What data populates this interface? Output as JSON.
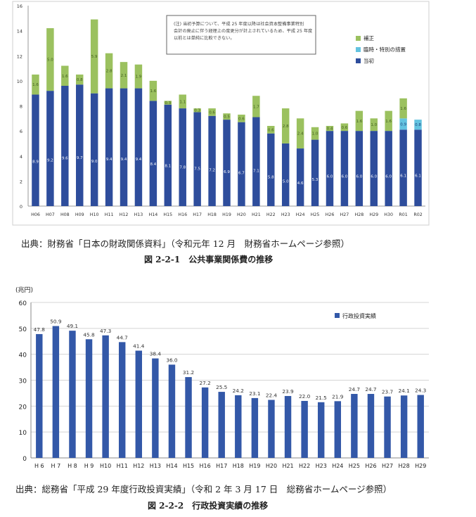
{
  "chart_data": [
    {
      "type": "bar",
      "stacked": true,
      "categories": [
        "H06",
        "H07",
        "H08",
        "H09",
        "H10",
        "H11",
        "H12",
        "H13",
        "H14",
        "H15",
        "H16",
        "H17",
        "H18",
        "H19",
        "H20",
        "H21",
        "H22",
        "H23",
        "H24",
        "H25",
        "H26",
        "H27",
        "H28",
        "H29",
        "H30",
        "R01",
        "R02"
      ],
      "ylim": [
        0,
        16
      ],
      "yticks": [
        0,
        2,
        4,
        6,
        8,
        10,
        12,
        14,
        16
      ],
      "grid": false,
      "legend_position": "right",
      "note": "(注) 当初予算について、平成 25 年度以降は社会資本整備事業特別会計の廃止に伴う経理上の度更分が計上されているため、平成 25 年度以前とは単純に比較できない。",
      "series": [
        {
          "name": "当初",
          "color": "#2e4d9c",
          "values": [
            8.9,
            9.2,
            9.6,
            9.7,
            9.0,
            9.4,
            9.4,
            9.4,
            8.4,
            8.1,
            7.8,
            7.5,
            7.2,
            6.9,
            6.7,
            7.1,
            5.8,
            5.0,
            4.6,
            5.3,
            6.0,
            6.0,
            6.0,
            6.0,
            6.0,
            6.1,
            6.1
          ]
        },
        {
          "name": "臨時・特別の措置",
          "color": "#63c3e0",
          "values": [
            0,
            0,
            0,
            0,
            0,
            0,
            0,
            0,
            0,
            0,
            0,
            0,
            0,
            0,
            0,
            0,
            0,
            0,
            0,
            0,
            0,
            0,
            0,
            0,
            0,
            0.9,
            0.8
          ]
        },
        {
          "name": "補正",
          "color": "#9bc15f",
          "values": [
            1.6,
            5.0,
            1.6,
            0.8,
            5.9,
            2.8,
            2.1,
            1.9,
            1.6,
            0.3,
            1.1,
            0.3,
            0.6,
            0.5,
            0.6,
            1.7,
            0.6,
            2.8,
            2.4,
            1.0,
            0.4,
            0.6,
            1.6,
            1.0,
            1.6,
            1.6,
            0
          ]
        }
      ],
      "source": "出典：財務省「日本の財政関係資料」（令和元年 12 月　財務省ホームページ参照）",
      "figure_title": "図 2-2-1　公共事業関係費の推移"
    },
    {
      "type": "bar",
      "categories": [
        "H 6",
        "H 7",
        "H 8",
        "H 9",
        "H10",
        "H11",
        "H12",
        "H13",
        "H14",
        "H15",
        "H16",
        "H17",
        "H18",
        "H19",
        "H20",
        "H21",
        "H22",
        "H23",
        "H24",
        "H25",
        "H26",
        "H27",
        "H28",
        "H29"
      ],
      "ylim": [
        0,
        60
      ],
      "yticks": [
        0,
        10,
        20,
        30,
        40,
        50,
        60
      ],
      "ylabel": "(兆円)",
      "grid": true,
      "legend_position": "top-right",
      "series": [
        {
          "name": "行政投資実績",
          "color": "#3358a8",
          "values": [
            47.8,
            50.9,
            49.1,
            45.8,
            47.3,
            44.7,
            41.4,
            38.4,
            36.0,
            31.2,
            27.2,
            25.5,
            24.2,
            23.1,
            22.4,
            23.9,
            22.0,
            21.5,
            21.9,
            24.7,
            24.7,
            23.7,
            24.1,
            24.3
          ]
        }
      ],
      "source": "出典：総務省「平成 29 年度行政投資実績」（令和 2 年 3 月 17 日　総務省ホームページ参照）",
      "figure_title": "図 2-2-2　行政投資実績の推移"
    }
  ]
}
